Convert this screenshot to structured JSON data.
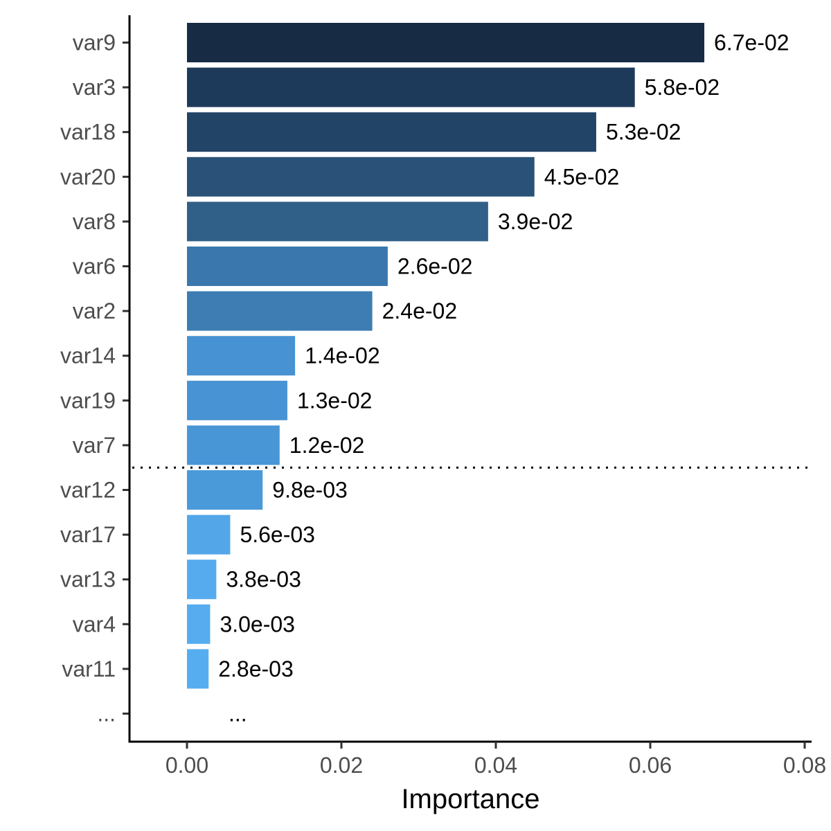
{
  "chart_data": {
    "type": "bar",
    "orientation": "horizontal",
    "title": "",
    "xlabel": "Importance",
    "ylabel": "",
    "xlim": [
      0,
      0.08
    ],
    "x_ticks": [
      {
        "value": 0.0,
        "label": "0.00"
      },
      {
        "value": 0.02,
        "label": "0.02"
      },
      {
        "value": 0.04,
        "label": "0.04"
      },
      {
        "value": 0.06,
        "label": "0.06"
      },
      {
        "value": 0.08,
        "label": "0.08"
      }
    ],
    "categories": [
      "var9",
      "var3",
      "var18",
      "var20",
      "var8",
      "var6",
      "var2",
      "var14",
      "var19",
      "var7",
      "var12",
      "var17",
      "var13",
      "var4",
      "var11",
      "..."
    ],
    "values": [
      0.067,
      0.058,
      0.053,
      0.045,
      0.039,
      0.026,
      0.024,
      0.014,
      0.013,
      0.012,
      0.0098,
      0.0056,
      0.0038,
      0.003,
      0.0028,
      null
    ],
    "value_labels": [
      "6.7e-02",
      "5.8e-02",
      "5.3e-02",
      "4.5e-02",
      "3.9e-02",
      "2.6e-02",
      "2.4e-02",
      "1.4e-02",
      "1.3e-02",
      "1.2e-02",
      "9.8e-03",
      "5.6e-03",
      "3.8e-03",
      "3.0e-03",
      "2.8e-03",
      "..."
    ],
    "colors": [
      "#172b45",
      "#1e3a5a",
      "#224466",
      "#2a5278",
      "#305f88",
      "#3a77ad",
      "#3d7db3",
      "#4792d2",
      "#4893d3",
      "#4996d7",
      "#4a9ada",
      "#53a7e9",
      "#55abee",
      "#56acee",
      "#56adf0",
      null
    ],
    "threshold_line": {
      "style": "dotted",
      "between_categories": [
        "var7",
        "var12"
      ]
    },
    "grid": false,
    "legend": "none"
  }
}
